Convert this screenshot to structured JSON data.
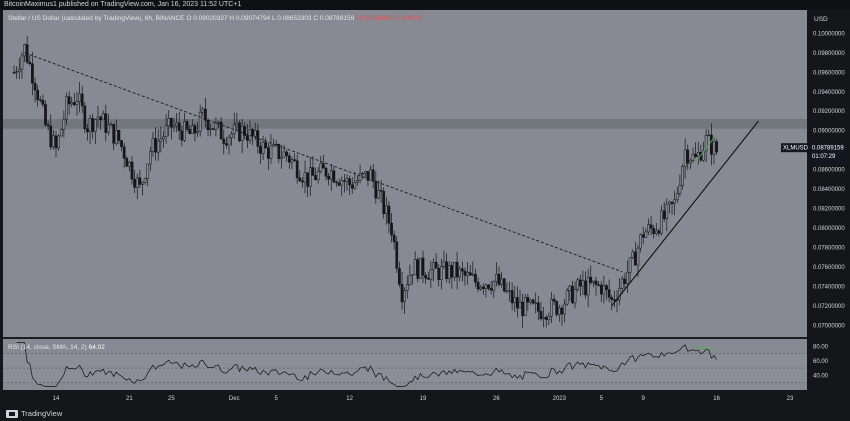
{
  "header": {
    "published_by": "BitcoinMaximus1 published on TradingView.com, Jan 16, 2023 11:52 UTC+1"
  },
  "legend": {
    "symbol": "Stellar / US Dollar (calculated by TradingView), 6h, BINANCE",
    "open": "O 0.09020327",
    "high": "H 0.09074794",
    "low": "L 0.08653303",
    "close": "C 0.08789159",
    "change": "−0.00242620 (−2.69%)"
  },
  "currency": "USD",
  "price_tag": {
    "ticker": "XLMUSD",
    "price": "0.08789159",
    "countdown": "01:07:29"
  },
  "rsi": {
    "label": "RSI (14, close, SMA, 14, 2)",
    "value": "64.02",
    "ticks": [
      "80.00",
      "60.00",
      "40.00"
    ]
  },
  "footer": {
    "brand": "TradingView"
  },
  "colors": {
    "background": "#878a93",
    "candle": "#15161a",
    "resistance_zone": "#6f7279",
    "divergence": "#4caf50",
    "price_tag_bg": "#131722"
  },
  "chart_data": {
    "type": "candlestick",
    "title": "Stellar / US Dollar, 6h, BINANCE",
    "y_ticks": [
      "0.10000000",
      "0.09800000",
      "0.09600000",
      "0.09400000",
      "0.09200000",
      "0.09000000",
      "0.08800000",
      "0.08600000",
      "0.08400000",
      "0.08200000",
      "0.08000000",
      "0.07800000",
      "0.07600000",
      "0.07400000",
      "0.07200000",
      "0.07000000"
    ],
    "x_ticks": [
      "14",
      "21",
      "25",
      "Dec",
      "5",
      "12",
      "19",
      "26",
      "2023",
      "5",
      "9",
      "16",
      "23"
    ],
    "ylim": [
      0.0688,
      0.1024
    ],
    "resistance_zone": [
      0.0902,
      0.0912
    ],
    "descending_trendline": {
      "from": [
        "Nov 11",
        0.098
      ],
      "to": [
        "Jan 7",
        0.0755
      ]
    },
    "ascending_trendline": {
      "from": [
        "Jan 6",
        0.072
      ],
      "to": [
        "Jan 20",
        0.091
      ]
    },
    "price_path": [
      {
        "t": "Nov 10",
        "v": 0.096
      },
      {
        "t": "Nov 11",
        "v": 0.0985
      },
      {
        "t": "Nov 12",
        "v": 0.095
      },
      {
        "t": "Nov 13",
        "v": 0.0905
      },
      {
        "t": "Nov 14",
        "v": 0.088
      },
      {
        "t": "Nov 15",
        "v": 0.0925
      },
      {
        "t": "Nov 16",
        "v": 0.0935
      },
      {
        "t": "Nov 17",
        "v": 0.0905
      },
      {
        "t": "Nov 18",
        "v": 0.0915
      },
      {
        "t": "Nov 20",
        "v": 0.089
      },
      {
        "t": "Nov 22",
        "v": 0.084
      },
      {
        "t": "Nov 23",
        "v": 0.088
      },
      {
        "t": "Nov 25",
        "v": 0.0905
      },
      {
        "t": "Nov 27",
        "v": 0.0895
      },
      {
        "t": "Nov 28",
        "v": 0.0915
      },
      {
        "t": "Nov 30",
        "v": 0.0895
      },
      {
        "t": "Dec 2",
        "v": 0.09
      },
      {
        "t": "Dec 4",
        "v": 0.088
      },
      {
        "t": "Dec 6",
        "v": 0.0875
      },
      {
        "t": "Dec 8",
        "v": 0.085
      },
      {
        "t": "Dec 10",
        "v": 0.086
      },
      {
        "t": "Dec 12",
        "v": 0.0845
      },
      {
        "t": "Dec 14",
        "v": 0.0855
      },
      {
        "t": "Dec 16",
        "v": 0.08
      },
      {
        "t": "Dec 17",
        "v": 0.0735
      },
      {
        "t": "Dec 18",
        "v": 0.076
      },
      {
        "t": "Dec 20",
        "v": 0.0755
      },
      {
        "t": "Dec 22",
        "v": 0.0755
      },
      {
        "t": "Dec 24",
        "v": 0.0745
      },
      {
        "t": "Dec 26",
        "v": 0.0745
      },
      {
        "t": "Dec 28",
        "v": 0.072
      },
      {
        "t": "Dec 30",
        "v": 0.0715
      },
      {
        "t": "Jan 1",
        "v": 0.072
      },
      {
        "t": "Jan 3",
        "v": 0.074
      },
      {
        "t": "Jan 5",
        "v": 0.074
      },
      {
        "t": "Jan 6",
        "v": 0.0725
      },
      {
        "t": "Jan 8",
        "v": 0.0765
      },
      {
        "t": "Jan 9",
        "v": 0.0795
      },
      {
        "t": "Jan 10",
        "v": 0.08
      },
      {
        "t": "Jan 11",
        "v": 0.081
      },
      {
        "t": "Jan 12",
        "v": 0.0825
      },
      {
        "t": "Jan 13",
        "v": 0.088
      },
      {
        "t": "Jan 14",
        "v": 0.087
      },
      {
        "t": "Jan 15",
        "v": 0.089
      },
      {
        "t": "Jan 16",
        "v": 0.0879
      }
    ]
  }
}
